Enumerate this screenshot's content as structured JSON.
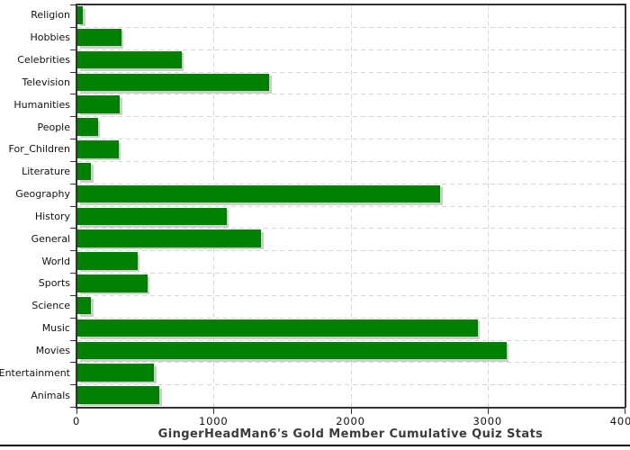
{
  "page": {
    "background": "#ffffff"
  },
  "chart_data": {
    "type": "bar",
    "orientation": "horizontal",
    "title": "GingerHeadMan6's Gold Member Cumulative Quiz Stats",
    "categories": [
      "Religion",
      "Hobbies",
      "Celebrities",
      "Television",
      "Humanities",
      "People",
      "For_Children",
      "Literature",
      "Geography",
      "History",
      "General",
      "World",
      "Sports",
      "Science",
      "Music",
      "Movies",
      "Entertainment",
      "Animals"
    ],
    "values": [
      40,
      320,
      760,
      1400,
      310,
      150,
      300,
      100,
      2650,
      1090,
      1340,
      440,
      510,
      100,
      2920,
      3130,
      560,
      600
    ],
    "xlabel": "",
    "ylabel": "",
    "xlim": [
      0,
      4000
    ],
    "x_ticks": [
      0,
      1000,
      2000,
      3000,
      4000
    ],
    "x_tick_labels": [
      "0",
      "1000",
      "2000",
      "3000",
      "4000"
    ],
    "grid": "dashed-both-axes",
    "legend": "none",
    "colors": {
      "bar_fill": "#008000",
      "bar_shadow": "#cdcdcd",
      "gridline": "#d6d6d6",
      "axis": "#333333",
      "tick_label": "#111111",
      "category_label": "#111111",
      "title": "#3b3b3b",
      "bottom_rule": "#000000"
    }
  }
}
